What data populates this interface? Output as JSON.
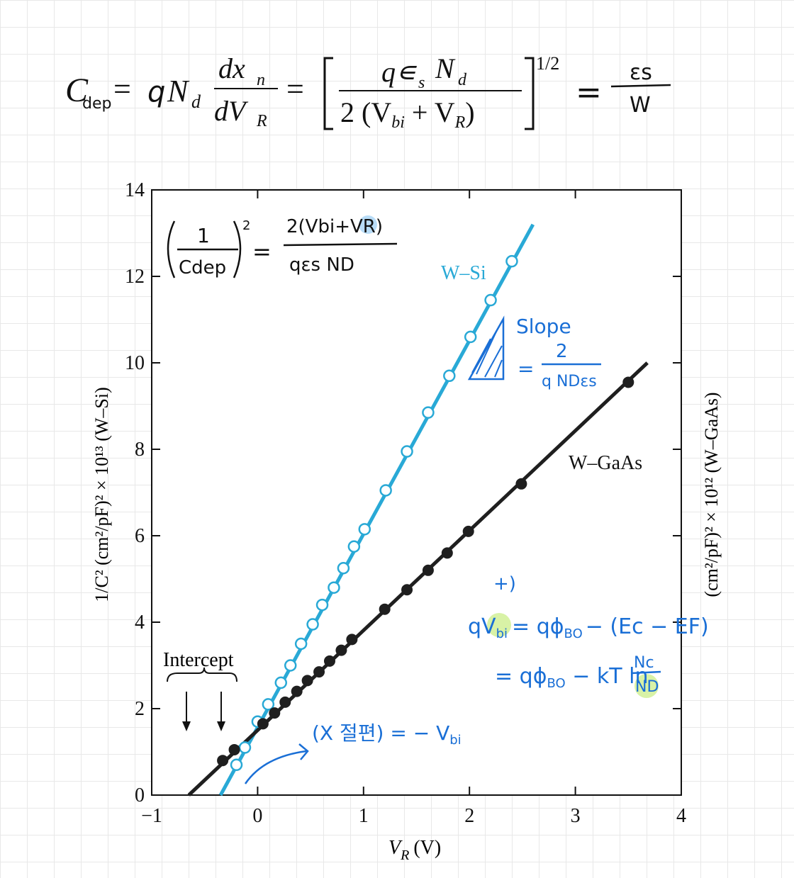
{
  "formula": {
    "cdep_c": "C",
    "cdep_sub": "dep",
    "eq1": "=",
    "q": "q",
    "n": "N",
    "n_sub": "d",
    "frac1_num": "dx",
    "frac1_num_sub": "n",
    "frac1_den": "dV",
    "frac1_den_sub": "R",
    "eq2": "=",
    "frac2_num": "q∊",
    "frac2_num_s": "s",
    "frac2_num_n": "N",
    "frac2_num_d": "d",
    "frac2_den_2": "2 (V",
    "frac2_den_bi": "bi",
    "frac2_den_plus": " + V",
    "frac2_den_r": "R",
    "frac2_den_close": ")",
    "exponent": "1/2",
    "eq3": "=",
    "es": "εs",
    "w": "W"
  },
  "chart_data": {
    "type": "line",
    "xlabel": "V",
    "xlabel_sub": "R",
    "xlabel_unit": "(V)",
    "ylabel": "1/C² (cm²/pF)² × 10¹³ (W–Si)",
    "ylabel_right": "(cm²/pF)² × 10¹² (W–GaAs)",
    "xlim": [
      -1,
      4
    ],
    "ylim": [
      0,
      14
    ],
    "xticks": [
      -1,
      0,
      1,
      2,
      3,
      4
    ],
    "xtick_labels": [
      "−1",
      "0",
      "1",
      "2",
      "3",
      "4"
    ],
    "yticks": [
      0,
      2,
      4,
      6,
      8,
      10,
      12,
      14
    ],
    "ytick_labels": [
      "0",
      "2",
      "4",
      "6",
      "8",
      "10",
      "12",
      "14"
    ],
    "series": [
      {
        "name": "W–Si",
        "color": "#29a9d6",
        "marker": "open-circle",
        "line": {
          "x": [
            -0.35,
            2.6
          ],
          "y": [
            0,
            13.2
          ]
        },
        "x": [
          -0.2,
          -0.12,
          0.0,
          0.1,
          0.22,
          0.31,
          0.41,
          0.52,
          0.61,
          0.72,
          0.81,
          0.91,
          1.01,
          1.21,
          1.41,
          1.61,
          1.81,
          2.01,
          2.2,
          2.4
        ],
        "y": [
          0.7,
          1.1,
          1.7,
          2.1,
          2.6,
          3.0,
          3.5,
          3.95,
          4.4,
          4.8,
          5.25,
          5.75,
          6.15,
          7.05,
          7.95,
          8.85,
          9.7,
          10.6,
          11.45,
          12.35
        ]
      },
      {
        "name": "W–GaAs",
        "color": "#1f1f1f",
        "marker": "filled-circle",
        "line": {
          "x": [
            -0.65,
            3.68
          ],
          "y": [
            0,
            10.0
          ]
        },
        "x": [
          -0.33,
          -0.22,
          0.05,
          0.16,
          0.26,
          0.37,
          0.47,
          0.58,
          0.68,
          0.79,
          0.89,
          1.2,
          1.41,
          1.61,
          1.79,
          1.99,
          2.49,
          3.5
        ],
        "y": [
          0.8,
          1.05,
          1.65,
          1.9,
          2.15,
          2.4,
          2.65,
          2.85,
          3.1,
          3.35,
          3.6,
          4.3,
          4.75,
          5.2,
          5.6,
          6.1,
          7.2,
          9.55
        ]
      }
    ],
    "annotations": {
      "intercept": "Intercept",
      "wsi_label": "W–Si",
      "wgaas_label": "W–GaAs"
    }
  },
  "handwriting": {
    "color_blue": "#1a6fd6",
    "color_black": "#111111",
    "inv_cdep_one": "1",
    "inv_cdep_den": "Cdep",
    "inv_cdep_exp": "2",
    "inv_cdep_eq": "=",
    "inv_num": "2(Vbi+VR)",
    "inv_den": "qεs ND",
    "slope_word": "Slope",
    "slope_eq": "=",
    "slope_num": "2",
    "slope_den": "q NDεs",
    "plus": "+)",
    "qvbi_lhs": "qV",
    "qvbi_bi": "bi",
    "qvbi_rhs": "= qϕ",
    "qvbi_b0": "BO",
    "qvbi_rest": "− (Ec − EF)",
    "kt_lhs": "= qϕ",
    "kt_b0": "BO",
    "kt_rest": " − kT ln",
    "kt_num": "Nc",
    "kt_den": "ND",
    "xint": "(X 절편) = − V",
    "xint_sub": "bi"
  }
}
